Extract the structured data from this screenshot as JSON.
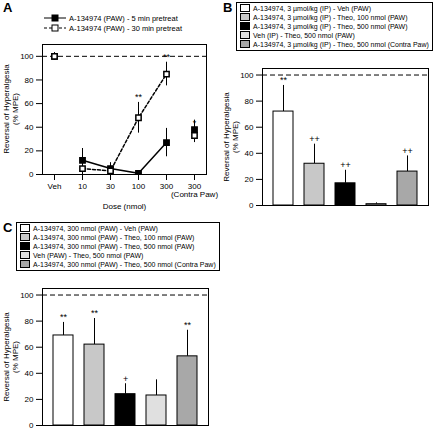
{
  "chart_data": [
    {
      "type": "line",
      "title": "A",
      "xlabel": "Dose (nmol)",
      "ylabel": "Reversal of Hyperalgesia\n(% MPE)",
      "categories": [
        "Veh",
        "10",
        "30",
        "100",
        "300",
        "300\n(Contra Paw)"
      ],
      "series": [
        {
          "name": "A-134974 (PAW) - 5 min pretreat",
          "color": "#000000",
          "marker": "square",
          "line_style": "solid",
          "values": [
            100,
            12,
            5,
            1,
            27,
            38
          ],
          "errors": [
            3,
            10,
            5,
            2,
            12,
            8
          ]
        },
        {
          "name": "A-134974 (PAW) - 30 min pretreat",
          "color": "#000000",
          "marker": "open-square",
          "line_style": "dashed",
          "values": [
            100,
            5,
            3,
            48,
            85,
            33
          ],
          "errors": [
            3,
            5,
            5,
            13,
            10,
            6
          ],
          "annotations": [
            null,
            null,
            null,
            "**",
            "**",
            "*"
          ]
        }
      ],
      "ylim": [
        0,
        110
      ],
      "yticks": [
        0,
        20,
        40,
        60,
        80,
        100
      ],
      "reference_line": 100,
      "legend": "top"
    },
    {
      "type": "bar",
      "title": "B",
      "ylabel": "Reversal of Hyperalgesia\n(% MPE)",
      "categories": [
        "A-134974, 3 µmol/kg (IP) - Veh (PAW)",
        "A-134974, 3 µmol/kg (IP) - Theo, 100 nmol (PAW)",
        "A-134974, 3 µmol/kg (IP) - Theo, 500 nmol (PAW)",
        "Veh (IP) - Theo, 500 nmol (PAW)",
        "A-134974, 3 µmol/kg (IP) - Theo, 500 nmol (Contra Paw)"
      ],
      "values": [
        72,
        32,
        17,
        1,
        26
      ],
      "errors": [
        20,
        15,
        10,
        1,
        12
      ],
      "annotations": [
        "**",
        "++",
        "++",
        null,
        "++"
      ],
      "colors": [
        "#ffffff",
        "#c8c8c8",
        "#000000",
        "#e0e0e0",
        "#a8a8a8"
      ],
      "ylim": [
        0,
        105
      ],
      "yticks": [
        0,
        20,
        40,
        60,
        80,
        100
      ],
      "reference_line": 100,
      "tick_labels": "y",
      "legend": "top"
    },
    {
      "type": "bar",
      "title": "C",
      "ylabel": "Reversal of Hyperalgesia\n(% MPE)",
      "categories": [
        "A-134974, 300 nmol (PAW) - Veh (PAW)",
        "A-134974, 300 nmol (PAW) - Theo, 100 nmol (PAW)",
        "A-134974, 300 nmol (PAW) - Theo, 500 nmol (PAW)",
        "Veh (PAW) - Theo, 500 nmol (PAW)",
        "A-134974, 300 nmol (PAW) - Theo, 500 nmol (Contra Paw)"
      ],
      "values": [
        69,
        62,
        24,
        23,
        53
      ],
      "errors": [
        10,
        20,
        8,
        12,
        20
      ],
      "annotations": [
        "**",
        "**",
        "+",
        null,
        "**"
      ],
      "colors": [
        "#ffffff",
        "#c8c8c8",
        "#000000",
        "#e0e0e0",
        "#a8a8a8"
      ],
      "ylim": [
        0,
        105
      ],
      "yticks": [
        0,
        20,
        40,
        60,
        80,
        100
      ],
      "reference_line": 100,
      "tick_labels": "y",
      "legend": "top"
    }
  ]
}
